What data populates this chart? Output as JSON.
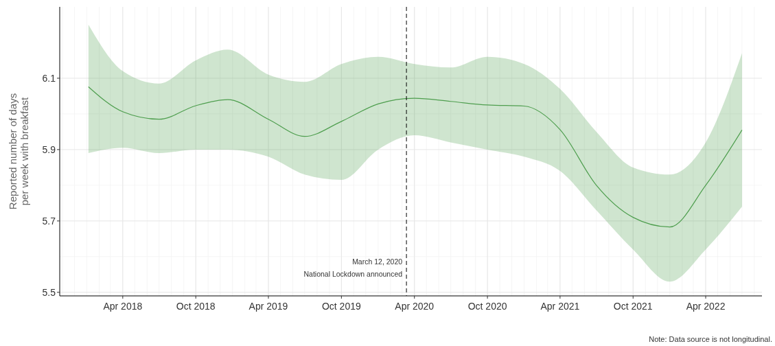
{
  "chart_data": {
    "type": "line",
    "ylabel": "Reported number of days\nper week with breakfast",
    "x": [
      "2018-01-05",
      "2018-04-01",
      "2018-07-01",
      "2018-10-01",
      "2018-12-20",
      "2019-04-01",
      "2019-07-01",
      "2019-10-01",
      "2020-01-01",
      "2020-04-01",
      "2020-07-01",
      "2020-10-01",
      "2021-01-01",
      "2021-04-01",
      "2021-07-01",
      "2021-10-01",
      "2022-01-01",
      "2022-04-01",
      "2022-07-01"
    ],
    "series": [
      {
        "color": "#4e9e4e",
        "values": [
          6.076,
          6.006,
          5.985,
          6.023,
          6.04,
          5.985,
          5.937,
          5.979,
          6.028,
          6.044,
          6.035,
          6.025,
          6.022,
          5.956,
          5.8,
          5.71,
          5.683,
          5.8,
          5.955
        ],
        "lower": [
          5.89,
          5.905,
          5.89,
          5.9,
          5.9,
          5.88,
          5.83,
          5.815,
          5.9,
          5.94,
          5.92,
          5.9,
          5.88,
          5.84,
          5.73,
          5.62,
          5.53,
          5.62,
          5.74
        ],
        "upper": [
          6.25,
          6.12,
          6.085,
          6.15,
          6.18,
          6.11,
          6.09,
          6.14,
          6.16,
          6.14,
          6.13,
          6.16,
          6.14,
          6.07,
          5.95,
          5.85,
          5.83,
          5.92,
          6.17
        ]
      }
    ],
    "xlim": [
      "2017-10-25",
      "2022-08-20"
    ],
    "xticks": [
      {
        "value": "2018-04-01",
        "label": "Apr 2018"
      },
      {
        "value": "2018-10-01",
        "label": "Oct 2018"
      },
      {
        "value": "2019-04-01",
        "label": "Apr 2019"
      },
      {
        "value": "2019-10-01",
        "label": "Oct 2019"
      },
      {
        "value": "2020-04-01",
        "label": "Apr 2020"
      },
      {
        "value": "2020-10-01",
        "label": "Oct 2020"
      },
      {
        "value": "2021-04-01",
        "label": "Apr 2021"
      },
      {
        "value": "2021-10-01",
        "label": "Oct 2021"
      },
      {
        "value": "2022-04-01",
        "label": "Apr 2022"
      }
    ],
    "ylim": [
      5.49,
      6.3
    ],
    "yticks": [
      5.5,
      5.7,
      5.9,
      6.1
    ],
    "grid": true,
    "line_style": "solid",
    "ref_lines": [
      {
        "axis": "x",
        "value": "2020-03-12",
        "label": "March 12, 2020\nNational Lockdown announced",
        "line_style": "dashed",
        "color": "#000000"
      }
    ],
    "annotations": [
      "Note: Data source is not longitudinal."
    ]
  }
}
